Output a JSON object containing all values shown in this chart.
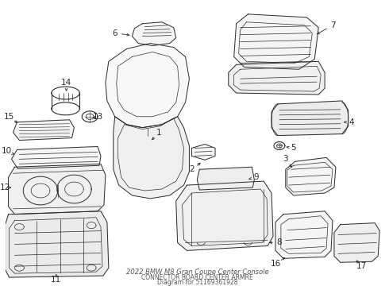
{
  "bg_color": "#ffffff",
  "line_color": "#2a2a2a",
  "title": "2022 BMW M8 Gran Coupe Center Console",
  "subtitle": "CONNECTOR BOARD CENTER ARMRE",
  "part_number": "Diagram for 51169361928",
  "label_fs": 7.5,
  "title_fs": 6.0
}
